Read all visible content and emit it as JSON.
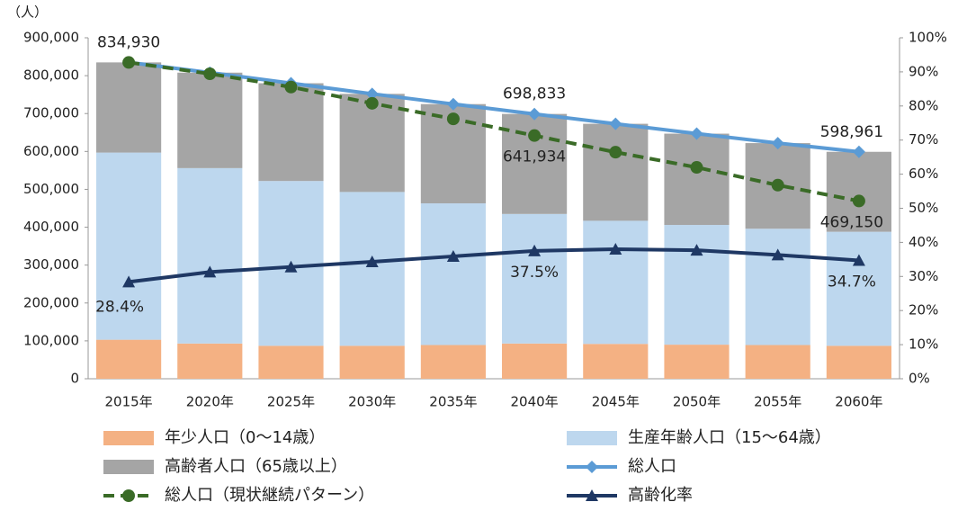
{
  "chart_data": {
    "type": "combo",
    "y_label": "（人）",
    "categories": [
      "2015年",
      "2020年",
      "2025年",
      "2030年",
      "2035年",
      "2040年",
      "2045年",
      "2050年",
      "2055年",
      "2060年"
    ],
    "ylim": [
      0,
      900000
    ],
    "yticks": [
      0,
      {
        "value": 100000,
        "label": "100,000"
      },
      {
        "value": 200000,
        "label": "200,000"
      },
      {
        "value": 300000,
        "label": "300,000"
      },
      {
        "value": 400000,
        "label": "400,000"
      },
      {
        "value": 500000,
        "label": "500,000"
      },
      {
        "value": 600000,
        "label": "600,000"
      },
      {
        "value": 700000,
        "label": "700,000"
      },
      {
        "value": 800000,
        "label": "800,000"
      },
      {
        "value": 900000,
        "label": "900,000"
      }
    ],
    "y2lim": [
      0,
      100
    ],
    "y2ticks": [
      {
        "value": 0,
        "label": "0%"
      },
      {
        "value": 10,
        "label": "10%"
      },
      {
        "value": 20,
        "label": "20%"
      },
      {
        "value": 30,
        "label": "30%"
      },
      {
        "value": 40,
        "label": "40%"
      },
      {
        "value": 50,
        "label": "50%"
      },
      {
        "value": 60,
        "label": "60%"
      },
      {
        "value": 70,
        "label": "70%"
      },
      {
        "value": 80,
        "label": "80%"
      },
      {
        "value": 90,
        "label": "90%"
      },
      {
        "value": 100,
        "label": "100%"
      }
    ],
    "grid": false,
    "legend": "bottom",
    "series": [
      {
        "name": "年少人口（0～14歳）",
        "kind": "bar",
        "color": "#f4b183",
        "values": [
          103000,
          93000,
          87000,
          87000,
          89000,
          93000,
          92000,
          90000,
          89000,
          87000
        ]
      },
      {
        "name": "生産年齢人口（15～64歳）",
        "kind": "bar",
        "color": "#bdd7ee",
        "values": [
          494000,
          463000,
          435000,
          406000,
          374000,
          342000,
          325000,
          316000,
          307000,
          301000
        ]
      },
      {
        "name": "高齢者人口（65歳以上）",
        "kind": "bar",
        "color": "#a5a5a5",
        "values": [
          238000,
          252000,
          258000,
          259000,
          262000,
          264000,
          256000,
          241000,
          226000,
          211000
        ]
      },
      {
        "name": "総人口",
        "kind": "line",
        "marker": "diamond",
        "color": "#5b9bd5",
        "values": [
          834930,
          808000,
          780000,
          752000,
          725000,
          698833,
          673000,
          647000,
          622000,
          598961
        ],
        "value_labels": [
          "834,930",
          null,
          null,
          null,
          null,
          "698,833",
          null,
          null,
          null,
          "598,961"
        ]
      },
      {
        "name": "総人口（現状継続パターン）",
        "kind": "line",
        "marker": "circle",
        "dash": true,
        "color": "#3a6b27",
        "values": [
          834930,
          805000,
          770000,
          727000,
          686000,
          641934,
          598000,
          558000,
          511000,
          469150
        ],
        "value_labels": [
          null,
          null,
          null,
          null,
          null,
          "641,934",
          null,
          null,
          null,
          "469,150"
        ]
      },
      {
        "name": "高齢化率",
        "kind": "line",
        "marker": "triangle",
        "axis": "y2",
        "color": "#1f3864",
        "values": [
          28.4,
          31.3,
          32.8,
          34.3,
          35.9,
          37.5,
          38.0,
          37.7,
          36.3,
          34.7
        ],
        "value_labels": [
          "28.4%",
          null,
          null,
          null,
          null,
          "37.5%",
          null,
          null,
          null,
          "34.7%"
        ]
      }
    ]
  }
}
